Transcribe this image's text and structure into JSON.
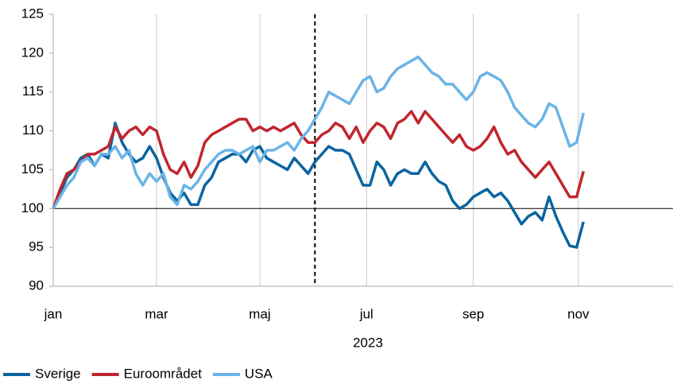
{
  "chart_data": {
    "type": "line",
    "xlabel": "2023",
    "x": [
      0,
      4,
      8,
      12,
      16,
      20,
      24,
      28,
      32,
      36,
      40,
      44,
      48,
      52,
      56,
      60,
      64,
      68,
      72,
      76,
      80,
      84,
      88,
      92,
      96,
      100,
      104,
      108,
      112,
      116,
      120,
      124,
      128,
      132,
      136,
      140,
      144,
      148,
      152,
      156,
      160,
      164,
      168,
      172,
      176,
      180,
      184,
      188,
      192,
      196,
      200,
      204,
      208,
      212,
      216,
      220,
      224,
      228,
      232,
      236,
      240,
      244,
      248,
      252,
      256,
      260,
      264,
      268,
      272,
      276,
      280,
      284,
      288,
      292,
      296,
      300,
      304,
      308
    ],
    "xlim": [
      0,
      360
    ],
    "xticks": [
      {
        "value": 0,
        "label": "jan"
      },
      {
        "value": 60,
        "label": "mar"
      },
      {
        "value": 120,
        "label": "maj"
      },
      {
        "value": 182,
        "label": "jul"
      },
      {
        "value": 244,
        "label": "sep"
      },
      {
        "value": 305,
        "label": "nov"
      }
    ],
    "ylim": [
      90,
      125
    ],
    "yticks": [
      90,
      95,
      100,
      105,
      110,
      115,
      120,
      125
    ],
    "reference_line": 100,
    "vline": 152,
    "grid": true,
    "legend": "bottom-left",
    "series": [
      {
        "name": "Sverige",
        "color": "#0b64a0",
        "values": [
          100,
          102,
          104,
          105,
          106.5,
          107,
          105.5,
          107,
          106.5,
          111,
          108.5,
          107,
          106,
          106.5,
          108,
          106.5,
          104,
          102,
          101,
          102,
          100.5,
          100.5,
          103,
          104,
          106,
          106.5,
          107,
          107,
          106,
          107.5,
          108,
          106.5,
          106,
          105.5,
          105,
          106.5,
          105.5,
          104.5,
          106,
          107,
          108,
          107.5,
          107.5,
          107,
          105,
          103,
          103,
          106,
          105,
          103,
          104.5,
          105,
          104.5,
          104.5,
          106,
          104.5,
          103.5,
          103,
          101,
          100,
          100.5,
          101.5,
          102,
          102.5,
          101.5,
          102,
          101,
          99.5,
          98,
          99,
          99.5,
          98.5,
          101.5,
          99,
          97,
          95.2,
          95,
          98.3
        ]
      },
      {
        "name": "Euroområdet",
        "color": "#c0262d",
        "values": [
          100,
          102.5,
          104.5,
          105,
          106,
          107,
          107,
          107.5,
          108,
          110.5,
          109,
          110,
          110.5,
          109.5,
          110.5,
          110,
          107,
          105,
          104.5,
          106,
          104,
          105.5,
          108.5,
          109.5,
          110,
          110.5,
          111,
          111.5,
          111.5,
          110,
          110.5,
          110,
          110.5,
          110,
          110.5,
          111,
          109.5,
          108.5,
          108.5,
          109.5,
          110,
          111,
          110.5,
          109,
          110.5,
          108.5,
          110,
          111,
          110.5,
          109,
          111,
          111.5,
          112.5,
          111,
          112.5,
          111.5,
          110.5,
          109.5,
          108.5,
          109.5,
          108,
          107.5,
          108,
          109,
          110.5,
          108.5,
          107,
          107.5,
          106,
          105,
          104,
          105,
          106,
          104.5,
          103,
          101.5,
          101.5,
          104.8
        ]
      },
      {
        "name": "USA",
        "color": "#6ab4e6",
        "values": [
          100,
          101.5,
          103,
          104,
          106,
          106.5,
          105.5,
          107,
          107,
          108,
          106.5,
          107.5,
          104.5,
          103,
          104.5,
          103.5,
          104.5,
          101.5,
          100.5,
          103,
          102.5,
          103.5,
          105,
          106,
          107,
          107.5,
          107.5,
          107,
          107.5,
          108,
          106,
          107.5,
          107.5,
          108,
          108.5,
          107.5,
          109,
          110,
          111.5,
          113,
          115,
          114.5,
          114,
          113.5,
          115,
          116.5,
          117,
          115,
          115.5,
          117,
          118,
          118.5,
          119,
          119.5,
          118.5,
          117.5,
          117,
          116,
          116,
          115,
          114,
          115,
          117,
          117.5,
          117,
          116.5,
          115,
          113,
          112,
          111,
          110.5,
          111.5,
          113.5,
          113,
          110.5,
          108,
          108.5,
          112.3
        ]
      }
    ]
  }
}
